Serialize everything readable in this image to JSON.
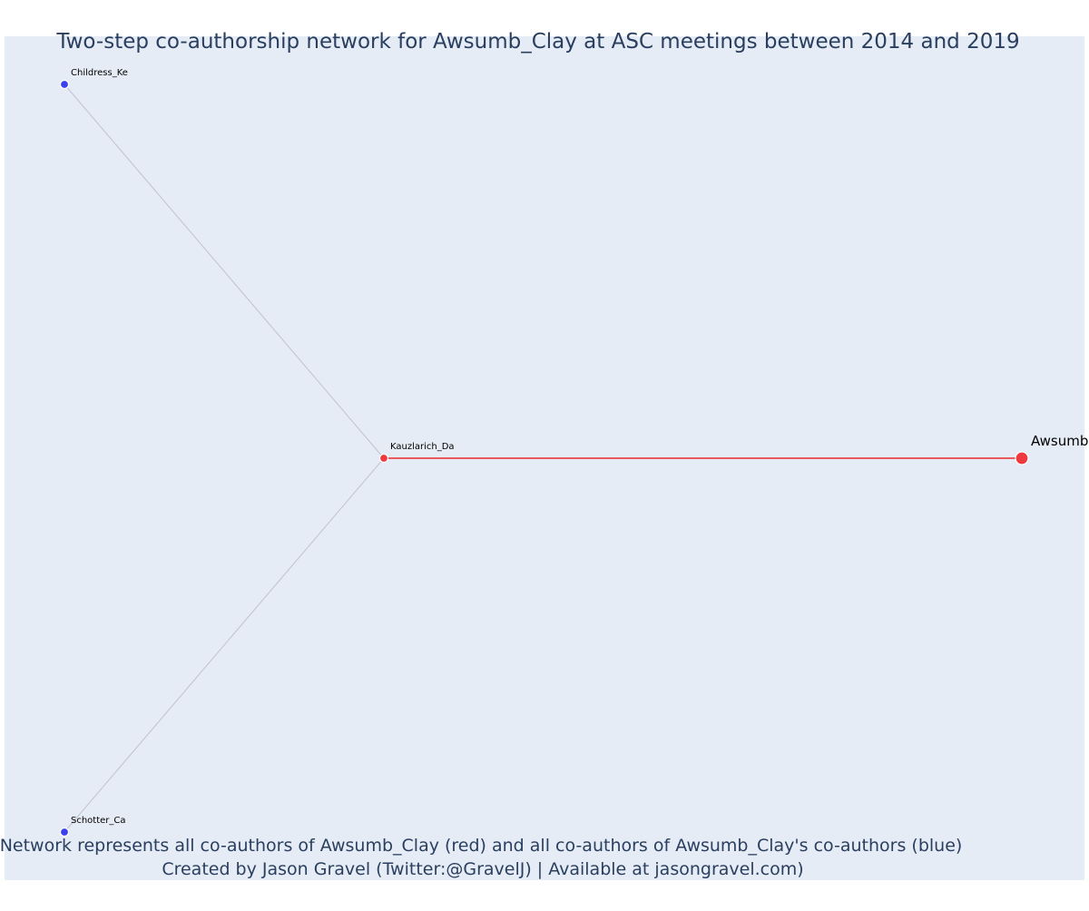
{
  "chart_data": {
    "type": "network",
    "title": "Two-step co-authorship network for Awsumb_Clay at ASC meetings between 2014 and 2019",
    "caption_line1": "Network represents all co-authors of Awsumb_Clay (red) and all co-authors of Awsumb_Clay's co-authors (blue)",
    "caption_line2": "Created by Jason Gravel (Twitter:@GravelJ) | Available at jasongravel.com)",
    "background_color": "#e5ecf6",
    "nodes": [
      {
        "id": "Childress_Ke",
        "label": "Childress_Ke",
        "group": "second_step",
        "color": "#3a3ff0"
      },
      {
        "id": "Kauzlarich_Da",
        "label": "Kauzlarich_Da",
        "group": "co_author",
        "color": "#ee3a3f"
      },
      {
        "id": "Schotter_Ca",
        "label": "Schotter_Ca",
        "group": "second_step",
        "color": "#3a3ff0"
      },
      {
        "id": "Awsumb_Clay",
        "label": "Awsumb",
        "group": "focal",
        "color": "#ee3a3f"
      }
    ],
    "edges": [
      {
        "source": "Kauzlarich_Da",
        "target": "Awsumb_Clay",
        "color": "#ee2a2e"
      },
      {
        "source": "Kauzlarich_Da",
        "target": "Childress_Ke",
        "color": "#c0c2cf"
      },
      {
        "source": "Kauzlarich_Da",
        "target": "Schotter_Ca",
        "color": "#c0c2cf"
      }
    ]
  }
}
